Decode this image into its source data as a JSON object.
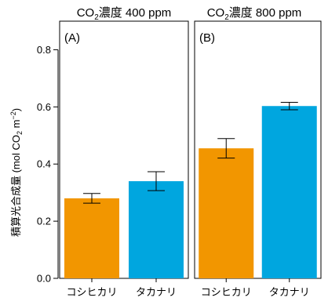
{
  "chart_data": {
    "type": "bar",
    "ylabel": {
      "prefix": "積算光合成量 (mol CO",
      "sub": "2",
      "mid": " m",
      "sup": "−2",
      "suffix": ")"
    },
    "ylim": [
      0,
      0.9
    ],
    "yticks": [
      "0.0",
      "0.2",
      "0.4",
      "0.6",
      "0.8"
    ],
    "ytick_values": [
      0.0,
      0.2,
      0.4,
      0.6,
      0.8
    ],
    "grid": false,
    "legend": "none",
    "panels": [
      {
        "tag": "(A)",
        "title": {
          "prefix": "CO",
          "sub": "2",
          "suffix": "濃度 400 ppm"
        },
        "categories": [
          "コシヒカリ",
          "タカナリ"
        ],
        "values": [
          0.28,
          0.34
        ],
        "errors": [
          0.017,
          0.033
        ],
        "colors": [
          "#f29600",
          "#00a6df"
        ]
      },
      {
        "tag": "(B)",
        "title": {
          "prefix": "CO",
          "sub": "2",
          "suffix": "濃度 800 ppm"
        },
        "categories": [
          "コシヒカリ",
          "タカナリ"
        ],
        "values": [
          0.455,
          0.603
        ],
        "errors": [
          0.034,
          0.013
        ],
        "colors": [
          "#f29600",
          "#00a6df"
        ]
      }
    ]
  }
}
